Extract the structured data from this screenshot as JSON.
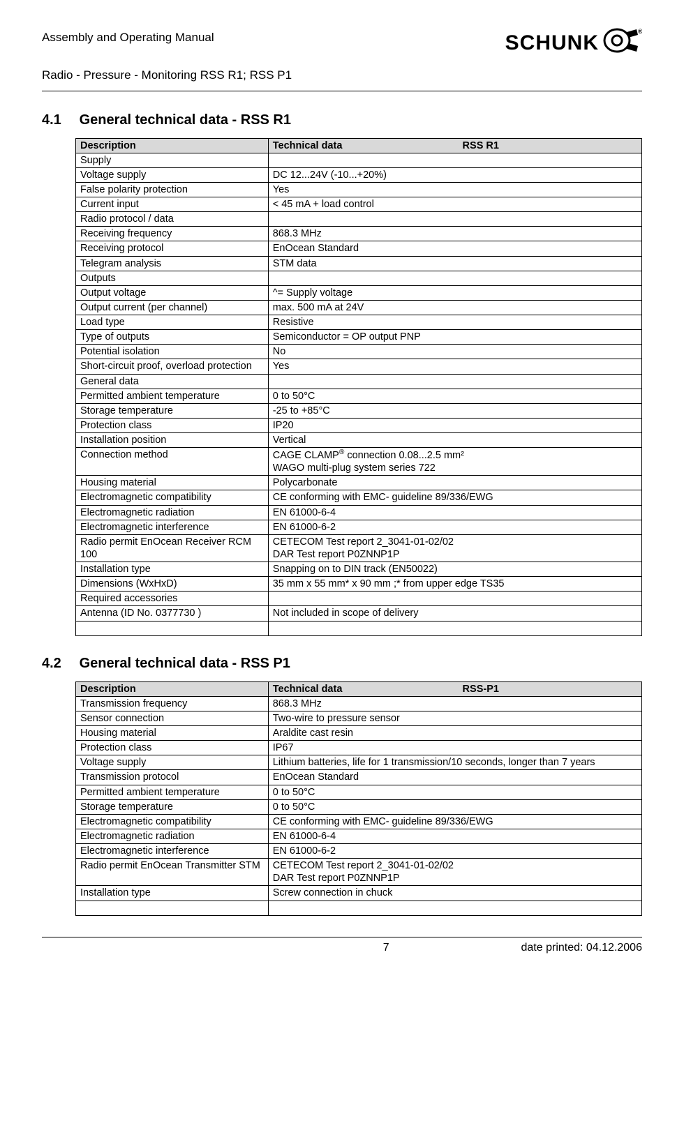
{
  "header": {
    "line1": "Assembly and Operating Manual",
    "line2": "Radio - Pressure - Monitoring RSS R1; RSS P1",
    "brand": "SCHUNK"
  },
  "section1": {
    "num": "4.1",
    "title": "General technical data - RSS R1",
    "head_desc": "Description",
    "head_data": "Technical data",
    "head_model": "RSS R1",
    "rows": [
      {
        "d": "Supply",
        "v": ""
      },
      {
        "d": "Voltage supply",
        "v": "DC 12...24V (-10...+20%)"
      },
      {
        "d": "False polarity protection",
        "v": "Yes"
      },
      {
        "d": "Current input",
        "v": "< 45 mA + load control"
      },
      {
        "d": "Radio protocol / data",
        "v": ""
      },
      {
        "d": "Receiving frequency",
        "v": "868.3 MHz"
      },
      {
        "d": "Receiving protocol",
        "v": "EnOcean Standard"
      },
      {
        "d": "Telegram analysis",
        "v": "STM data"
      },
      {
        "d": "Outputs",
        "v": ""
      },
      {
        "d": "Output voltage",
        "v": "^=  Supply voltage"
      },
      {
        "d": "Output current (per channel)",
        "v": "max. 500 mA at 24V"
      },
      {
        "d": "Load type",
        "v": "Resistive"
      },
      {
        "d": "Type of outputs",
        "v": "Semiconductor = OP output PNP"
      },
      {
        "d": "Potential isolation",
        "v": "No"
      },
      {
        "d": "Short-circuit proof, overload protection",
        "v": "Yes"
      },
      {
        "d": "General data",
        "v": ""
      },
      {
        "d": "Permitted ambient temperature",
        "v": "0 to 50°C"
      },
      {
        "d": "Storage temperature",
        "v": "-25 to +85°C"
      },
      {
        "d": "Protection class",
        "v": "IP20"
      },
      {
        "d": "Installation position",
        "v": "Vertical"
      },
      {
        "d": "Connection method",
        "v": "CAGE CLAMP® connection 0.08...2.5 mm²\nWAGO multi-plug system series 722",
        "html": true
      },
      {
        "d": "Housing material",
        "v": "Polycarbonate"
      },
      {
        "d": "Electromagnetic compatibility",
        "v": "CE conforming with EMC- guideline 89/336/EWG"
      },
      {
        "d": "Electromagnetic radiation",
        "v": "EN 61000-6-4"
      },
      {
        "d": "Electromagnetic interference",
        "v": "EN 61000-6-2"
      },
      {
        "d": "Radio permit EnOcean Receiver RCM 100",
        "v": "CETECOM  Test report 2_3041-01-02/02\nDAR Test report P0ZNNP1P"
      },
      {
        "d": "Installation type",
        "v": "Snapping on to DIN track (EN50022)"
      },
      {
        "d": "Dimensions (WxHxD)",
        "v": "35 mm x 55 mm* x 90 mm ;* from upper edge TS35"
      },
      {
        "d": "Required accessories",
        "v": ""
      },
      {
        "d": "Antenna (ID No. 0377730 )",
        "v": "Not included in scope of delivery"
      },
      {
        "d": "",
        "v": ""
      }
    ]
  },
  "section2": {
    "num": "4.2",
    "title": "General technical data - RSS P1",
    "head_desc": "Description",
    "head_data": "Technical data",
    "head_model": "RSS-P1",
    "rows": [
      {
        "d": "Transmission frequency",
        "v": "868.3 MHz"
      },
      {
        "d": "Sensor connection",
        "v": "Two-wire to pressure sensor"
      },
      {
        "d": "Housing material",
        "v": "Araldite cast resin"
      },
      {
        "d": "Protection class",
        "v": "IP67"
      },
      {
        "d": "Voltage supply",
        "v": "Lithium batteries, life for 1 transmission/10 seconds, longer than 7 years"
      },
      {
        "d": "Transmission protocol",
        "v": "EnOcean Standard"
      },
      {
        "d": "Permitted ambient temperature",
        "v": "0 to 50°C"
      },
      {
        "d": "Storage temperature",
        "v": "0 to 50°C"
      },
      {
        "d": "Electromagnetic compatibility",
        "v": "CE conforming with EMC- guideline 89/336/EWG"
      },
      {
        "d": "Electromagnetic radiation",
        "v": "EN 61000-6-4"
      },
      {
        "d": "Electromagnetic interference",
        "v": "EN 61000-6-2"
      },
      {
        "d": "Radio permit EnOcean Transmitter STM",
        "v": "CETECOM  Test report 2_3041-01-02/02\nDAR Test report P0ZNNP1P"
      },
      {
        "d": "Installation type",
        "v": "Screw connection in chuck"
      },
      {
        "d": "",
        "v": ""
      }
    ]
  },
  "footer": {
    "page": "7",
    "date": "date printed: 04.12.2006"
  }
}
